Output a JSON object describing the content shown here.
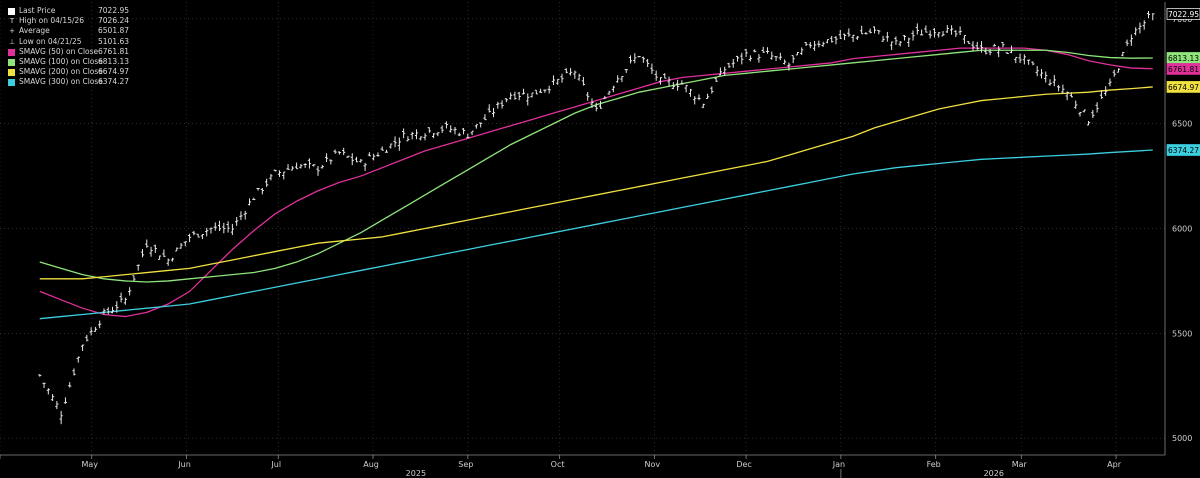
{
  "legend": [
    {
      "name": "Last Price",
      "value": "7022.95",
      "marker": "swatch",
      "color": "#ffffff"
    },
    {
      "name": "High on 04/15/26",
      "value": "7026.24",
      "marker": "T",
      "color": "#ffffff"
    },
    {
      "name": "Average",
      "value": "6501.87",
      "marker": "+",
      "color": "#ffffff"
    },
    {
      "name": "Low on 04/21/25",
      "value": "5101.63",
      "marker": "⊥",
      "color": "#ffffff"
    },
    {
      "name": "SMAVG (50)  on Close",
      "value": "6761.81",
      "marker": "swatch",
      "color": "#e0309a"
    },
    {
      "name": "SMAVG (100)  on Close",
      "value": "6813.13",
      "marker": "swatch",
      "color": "#8fe57a"
    },
    {
      "name": "SMAVG (200)  on Close",
      "value": "6674.97",
      "marker": "swatch",
      "color": "#f0e040"
    },
    {
      "name": "SMAVG (300)  on Close",
      "value": "6374.27",
      "marker": "swatch",
      "color": "#3ccfe0"
    }
  ],
  "chart_data": {
    "type": "line",
    "price_style": "ohlc-bars",
    "ylim": [
      4920,
      7080
    ],
    "y_ticks": [
      5000,
      5500,
      6000,
      6500,
      7000
    ],
    "grid": true,
    "legend_position": "top-left",
    "x_months": [
      "May",
      "Jun",
      "Jul",
      "Aug",
      "Sep",
      "Oct",
      "Nov",
      "Dec",
      "Jan",
      "Feb",
      "Mar",
      "Apr"
    ],
    "x_years": [
      "2025",
      "2026"
    ],
    "x": [
      "2025-04-14",
      "2025-04-21",
      "2025-04-28",
      "2025-05-05",
      "2025-05-12",
      "2025-05-19",
      "2025-05-26",
      "2025-06-02",
      "2025-06-09",
      "2025-06-16",
      "2025-06-23",
      "2025-06-30",
      "2025-07-07",
      "2025-07-14",
      "2025-07-21",
      "2025-07-28",
      "2025-08-04",
      "2025-08-11",
      "2025-08-18",
      "2025-08-25",
      "2025-09-01",
      "2025-09-08",
      "2025-09-15",
      "2025-09-22",
      "2025-09-29",
      "2025-10-06",
      "2025-10-13",
      "2025-10-20",
      "2025-10-27",
      "2025-11-03",
      "2025-11-10",
      "2025-11-17",
      "2025-11-24",
      "2025-12-01",
      "2025-12-08",
      "2025-12-15",
      "2025-12-22",
      "2025-12-29",
      "2026-01-05",
      "2026-01-12",
      "2026-01-19",
      "2026-01-26",
      "2026-02-02",
      "2026-02-09",
      "2026-02-16",
      "2026-02-23",
      "2026-03-02",
      "2026-03-09",
      "2026-03-16",
      "2026-03-23",
      "2026-03-30",
      "2026-04-06",
      "2026-04-13"
    ],
    "series": [
      {
        "name": "Last Price",
        "color": "#ffffff",
        "values": [
          5300,
          5120,
          5450,
          5590,
          5660,
          5930,
          5850,
          5960,
          6000,
          6000,
          6150,
          6260,
          6300,
          6290,
          6360,
          6310,
          6370,
          6440,
          6460,
          6480,
          6450,
          6540,
          6640,
          6640,
          6690,
          6750,
          6560,
          6720,
          6830,
          6700,
          6690,
          6600,
          6760,
          6830,
          6830,
          6780,
          6880,
          6900,
          6920,
          6940,
          6880,
          6930,
          6950,
          6920,
          6850,
          6860,
          6800,
          6720,
          6650,
          6520,
          6680,
          6920,
          7022.95
        ]
      },
      {
        "name": "SMAVG (50)  on Close",
        "color": "#e0309a",
        "values": [
          5700,
          5660,
          5620,
          5590,
          5580,
          5600,
          5640,
          5700,
          5800,
          5900,
          5990,
          6070,
          6130,
          6180,
          6220,
          6250,
          6290,
          6330,
          6370,
          6400,
          6430,
          6460,
          6490,
          6520,
          6550,
          6580,
          6610,
          6640,
          6670,
          6700,
          6720,
          6730,
          6740,
          6750,
          6760,
          6770,
          6780,
          6790,
          6810,
          6820,
          6830,
          6840,
          6850,
          6860,
          6860,
          6860,
          6860,
          6850,
          6830,
          6800,
          6780,
          6765,
          6761.81
        ]
      },
      {
        "name": "SMAVG (100)  on Close",
        "color": "#8fe57a",
        "values": [
          5840,
          5810,
          5780,
          5760,
          5750,
          5745,
          5750,
          5760,
          5770,
          5780,
          5790,
          5810,
          5840,
          5880,
          5930,
          5980,
          6040,
          6100,
          6160,
          6220,
          6280,
          6340,
          6400,
          6450,
          6500,
          6550,
          6590,
          6620,
          6650,
          6670,
          6690,
          6710,
          6730,
          6740,
          6750,
          6760,
          6770,
          6780,
          6790,
          6800,
          6810,
          6820,
          6830,
          6840,
          6850,
          6850,
          6850,
          6850,
          6840,
          6825,
          6815,
          6812,
          6813.13
        ]
      },
      {
        "name": "SMAVG (200)  on Close",
        "color": "#f0e040",
        "values": [
          5760,
          5760,
          5760,
          5770,
          5780,
          5790,
          5800,
          5810,
          5830,
          5850,
          5870,
          5890,
          5910,
          5930,
          5940,
          5950,
          5960,
          5980,
          6000,
          6020,
          6040,
          6060,
          6080,
          6100,
          6120,
          6140,
          6160,
          6180,
          6200,
          6220,
          6240,
          6260,
          6280,
          6300,
          6320,
          6350,
          6380,
          6410,
          6440,
          6480,
          6510,
          6540,
          6570,
          6590,
          6610,
          6620,
          6630,
          6640,
          6645,
          6650,
          6660,
          6667,
          6674.97
        ]
      },
      {
        "name": "SMAVG (300)  on Close",
        "color": "#3ccfe0",
        "values": [
          5570,
          5580,
          5590,
          5600,
          5610,
          5620,
          5630,
          5640,
          5660,
          5680,
          5700,
          5720,
          5740,
          5760,
          5780,
          5800,
          5820,
          5840,
          5860,
          5880,
          5900,
          5920,
          5940,
          5960,
          5980,
          6000,
          6020,
          6040,
          6060,
          6080,
          6100,
          6120,
          6140,
          6160,
          6180,
          6200,
          6220,
          6240,
          6260,
          6275,
          6290,
          6300,
          6310,
          6320,
          6330,
          6335,
          6340,
          6345,
          6350,
          6355,
          6362,
          6368,
          6374.27
        ]
      }
    ],
    "axis_labels": [
      {
        "series": "Last Price",
        "text": "7022.95",
        "value": 7022.95,
        "bg": "#000000",
        "fg": "#ffffff",
        "border": "#ffffff"
      },
      {
        "series": "SMAVG (100)  on Close",
        "text": "6813.13",
        "value": 6813.13,
        "bg": "#8fe57a",
        "fg": "#000000",
        "border": "#8fe57a"
      },
      {
        "series": "SMAVG (50)  on Close",
        "text": "6761.81",
        "value": 6761.81,
        "bg": "#e0309a",
        "fg": "#000000",
        "border": "#e0309a"
      },
      {
        "series": "SMAVG (200)  on Close",
        "text": "6674.97",
        "value": 6674.97,
        "bg": "#f0e040",
        "fg": "#000000",
        "border": "#f0e040"
      },
      {
        "series": "SMAVG (300)  on Close",
        "text": "6374.27",
        "value": 6374.27,
        "bg": "#3ccfe0",
        "fg": "#000000",
        "border": "#3ccfe0"
      }
    ]
  }
}
